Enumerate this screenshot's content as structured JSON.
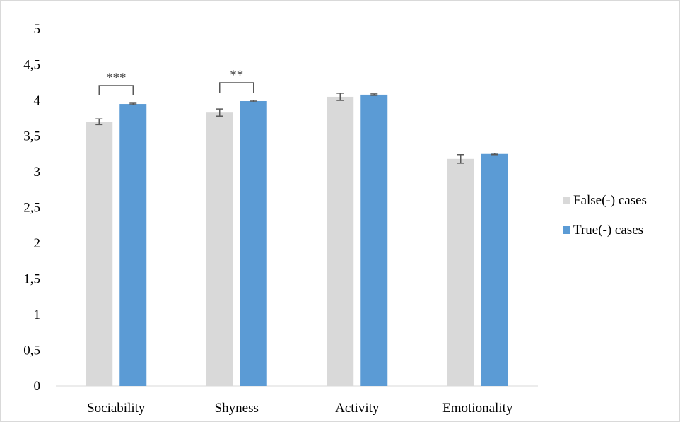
{
  "chart_data": {
    "type": "bar",
    "title": "",
    "xlabel": "",
    "ylabel": "",
    "categories": [
      "Sociability",
      "Shyness",
      "Activity",
      "Emotionality"
    ],
    "series": [
      {
        "name": "False(-) cases",
        "color": "#d9d9d9",
        "values": [
          3.7,
          3.83,
          4.05,
          3.18
        ],
        "errors": [
          0.04,
          0.05,
          0.05,
          0.06
        ]
      },
      {
        "name": "True(-) cases",
        "color": "#5b9bd5",
        "values": [
          3.95,
          3.99,
          4.08,
          3.25
        ],
        "errors": [
          0.01,
          0.01,
          0.01,
          0.01
        ]
      }
    ],
    "ylim": [
      0,
      5
    ],
    "yticks": [
      0,
      0.5,
      1,
      1.5,
      2,
      2.5,
      3,
      3.5,
      4,
      4.5,
      5
    ],
    "ytick_labels": [
      "0",
      "0,5",
      "1",
      "1,5",
      "2",
      "2,5",
      "3",
      "3,5",
      "4",
      "4,5",
      "5"
    ],
    "grid": false,
    "legend_position": "right",
    "annotations": [
      {
        "category": "Sociability",
        "text": "***"
      },
      {
        "category": "Shyness",
        "text": "**"
      }
    ]
  }
}
